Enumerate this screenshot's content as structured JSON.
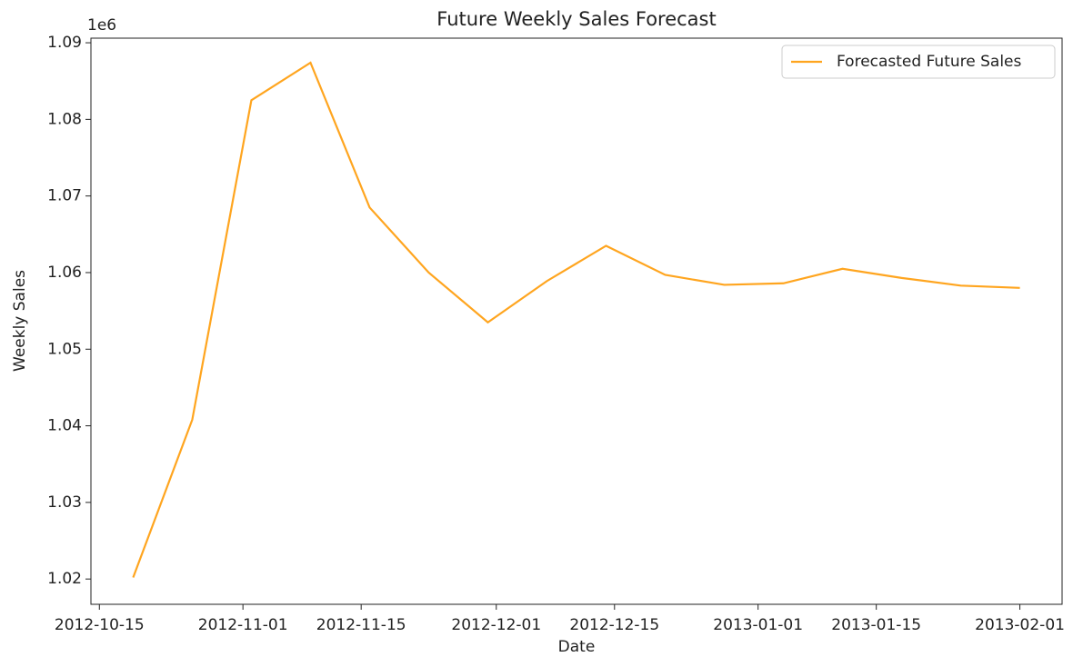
{
  "chart_data": {
    "type": "line",
    "title": "Future Weekly Sales Forecast",
    "x_label": "Date",
    "y_label": "Weekly Sales",
    "y_offset_label": "1e6",
    "x": [
      "2012-10-19",
      "2012-10-26",
      "2012-11-02",
      "2012-11-09",
      "2012-11-16",
      "2012-11-23",
      "2012-11-30",
      "2012-12-07",
      "2012-12-14",
      "2012-12-21",
      "2012-12-28",
      "2013-01-04",
      "2013-01-11",
      "2013-01-18",
      "2013-01-25",
      "2013-02-01"
    ],
    "series": [
      {
        "name": "Forecasted Future Sales",
        "color": "#ffa51f",
        "values": [
          1020200,
          1040800,
          1082500,
          1087400,
          1068500,
          1060000,
          1053500,
          1058900,
          1063500,
          1059700,
          1058400,
          1058600,
          1060500,
          1059300,
          1058300,
          1058000
        ]
      }
    ],
    "xlim": [
      "2012-10-14",
      "2013-02-06"
    ],
    "xticks": [
      "2012-10-15",
      "2012-11-01",
      "2012-11-15",
      "2012-12-01",
      "2012-12-15",
      "2013-01-01",
      "2013-01-15",
      "2013-02-01"
    ],
    "ylim": [
      1016700,
      1090600
    ],
    "yticks": [
      {
        "value": 1020000,
        "label": "1.02"
      },
      {
        "value": 1030000,
        "label": "1.03"
      },
      {
        "value": 1040000,
        "label": "1.04"
      },
      {
        "value": 1050000,
        "label": "1.05"
      },
      {
        "value": 1060000,
        "label": "1.06"
      },
      {
        "value": 1070000,
        "label": "1.07"
      },
      {
        "value": 1080000,
        "label": "1.08"
      },
      {
        "value": 1090000,
        "label": "1.09"
      }
    ],
    "legend": "upper right",
    "grid": false
  }
}
